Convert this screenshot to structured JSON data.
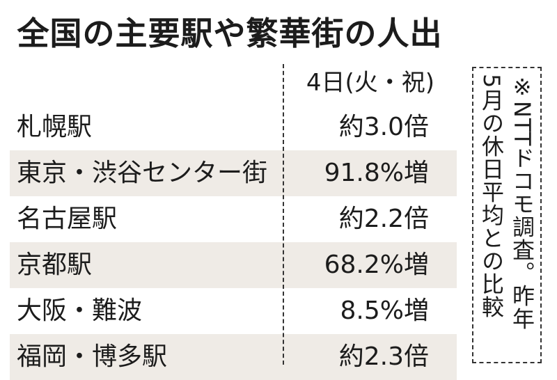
{
  "title": "全国の主要駅や繁華街の人出",
  "chart_data": {
    "type": "table",
    "columns": [
      "",
      "4日(火・祝)"
    ],
    "rows": [
      {
        "name": "札幌駅",
        "value": "約3.0倍"
      },
      {
        "name": "東京・渋谷センター街",
        "value": "91.8%増"
      },
      {
        "name": "名古屋駅",
        "value": "約2.2倍"
      },
      {
        "name": "京都駅",
        "value": "68.2%増"
      },
      {
        "name": "大阪・難波",
        "value": "8.5%増"
      },
      {
        "name": "福岡・博多駅",
        "value": "約2.3倍"
      }
    ]
  },
  "row_labels": [
    "札幌駅",
    "東京・渋谷センター街",
    "名古屋駅",
    "京都駅",
    "大阪・難波",
    "福岡・博多駅"
  ],
  "header_label": "4日(火・祝)",
  "note": {
    "line1": "※NTTドコモ調査。昨年",
    "line2": "5月の休日平均との比較"
  },
  "colors": {
    "shaded_row": "#efebe6",
    "text": "#1c1c1c"
  }
}
